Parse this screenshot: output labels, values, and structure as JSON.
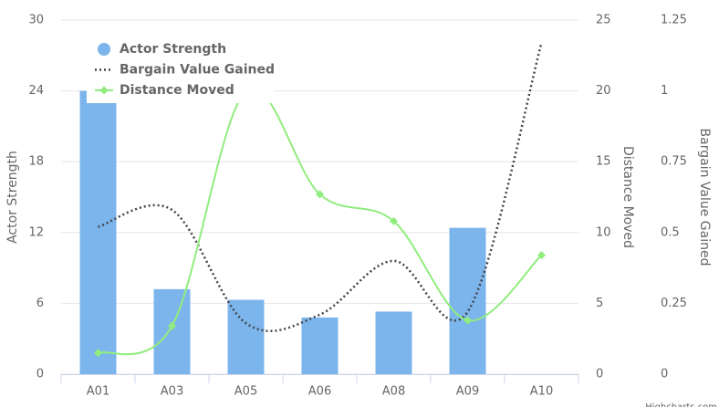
{
  "chart_data": {
    "type": "combo",
    "categories": [
      "A01",
      "A03",
      "A05",
      "A06",
      "A08",
      "A09",
      "A10"
    ],
    "series": [
      {
        "name": "Actor Strength",
        "type": "bar",
        "axis": "y",
        "color": "#7cb5ec",
        "values": [
          24,
          7.2,
          6.3,
          4.8,
          5.3,
          12.4,
          null
        ]
      },
      {
        "name": "Bargain Value Gained",
        "type": "spline",
        "axis": "y3",
        "color": "#434348",
        "values": [
          0.52,
          0.58,
          0.18,
          0.21,
          0.4,
          0.22,
          1.17
        ]
      },
      {
        "name": "Distance Moved",
        "type": "spline",
        "axis": "y2",
        "color": "#90ed7d",
        "values": [
          1.5,
          3.4,
          20,
          12.7,
          10.8,
          3.8,
          8.4
        ]
      }
    ],
    "y_label": "Actor Strength",
    "ylim": [
      0,
      30
    ],
    "yticks": [
      0,
      6,
      12,
      18,
      24,
      30
    ],
    "y2_label": "Distance Moved",
    "y2lim": [
      0,
      25
    ],
    "y2ticks": [
      0,
      5,
      10,
      15,
      20,
      25
    ],
    "y3_label": "Bargain Value Gained",
    "y3lim": [
      0,
      1.25
    ],
    "y3ticks": [
      0,
      0.25,
      0.5,
      0.75,
      1,
      1.25
    ],
    "grid": true,
    "legend": "upper-left",
    "credit": "Highcharts.com"
  }
}
